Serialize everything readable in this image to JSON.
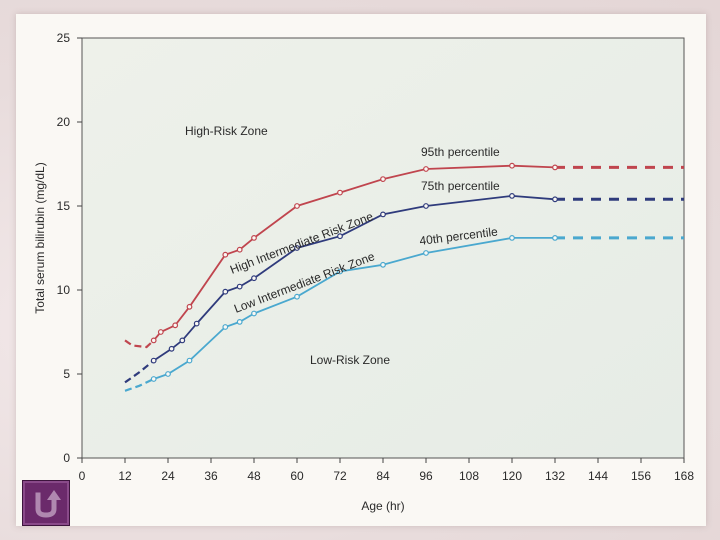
{
  "chart_data": {
    "type": "line",
    "xlabel": "Age (hr)",
    "ylabel": "Total serum bilirubin (mg/dL)",
    "xlim": [
      0,
      168
    ],
    "ylim": [
      0,
      25
    ],
    "x_ticks": [
      0,
      12,
      24,
      36,
      48,
      60,
      72,
      84,
      96,
      108,
      120,
      132,
      144,
      156,
      168
    ],
    "y_ticks": [
      0,
      5,
      10,
      15,
      20,
      25
    ],
    "grid": false,
    "series": [
      {
        "name": "95th percentile",
        "color": "#c0454e",
        "points": [
          [
            12,
            7.0
          ],
          [
            14,
            6.7
          ],
          [
            18,
            6.6
          ],
          [
            20,
            7.0
          ],
          [
            22,
            7.5
          ],
          [
            26,
            7.9
          ],
          [
            30,
            9.0
          ],
          [
            40,
            12.1
          ],
          [
            44,
            12.4
          ],
          [
            48,
            13.1
          ],
          [
            60,
            15.0
          ],
          [
            72,
            15.8
          ],
          [
            84,
            16.6
          ],
          [
            96,
            17.2
          ],
          [
            120,
            17.4
          ],
          [
            132,
            17.3
          ]
        ],
        "dashed_from_x": 132,
        "extension": [
          [
            132,
            17.3
          ],
          [
            168,
            17.3
          ]
        ]
      },
      {
        "name": "75th percentile",
        "color": "#2f3b7c",
        "points": [
          [
            12,
            4.5
          ],
          [
            16,
            5.1
          ],
          [
            20,
            5.8
          ],
          [
            25,
            6.5
          ],
          [
            28,
            7.0
          ],
          [
            32,
            8.0
          ],
          [
            40,
            9.9
          ],
          [
            44,
            10.2
          ],
          [
            48,
            10.7
          ],
          [
            60,
            12.5
          ],
          [
            72,
            13.2
          ],
          [
            84,
            14.5
          ],
          [
            96,
            15.0
          ],
          [
            120,
            15.6
          ],
          [
            132,
            15.4
          ]
        ],
        "dashed_from_x": 132,
        "extension": [
          [
            132,
            15.4
          ],
          [
            168,
            15.4
          ]
        ]
      },
      {
        "name": "40th percentile",
        "color": "#4aa8cf",
        "points": [
          [
            12,
            4.0
          ],
          [
            16,
            4.3
          ],
          [
            20,
            4.7
          ],
          [
            24,
            5.0
          ],
          [
            30,
            5.8
          ],
          [
            40,
            7.8
          ],
          [
            44,
            8.1
          ],
          [
            48,
            8.6
          ],
          [
            60,
            9.6
          ],
          [
            72,
            11.1
          ],
          [
            84,
            11.5
          ],
          [
            96,
            12.2
          ],
          [
            120,
            13.1
          ],
          [
            132,
            13.1
          ]
        ],
        "dashed_from_x": 132,
        "extension": [
          [
            132,
            13.1
          ],
          [
            168,
            13.1
          ]
        ]
      }
    ],
    "annotations": {
      "high_risk": "High-Risk Zone",
      "high_intermediate": "High Intermediate Risk Zone",
      "low_intermediate": "Low Intermediate Risk Zone",
      "low_risk": "Low-Risk Zone",
      "p95": "95th percentile",
      "p75": "75th percentile",
      "p40": "40th percentile"
    }
  },
  "back_button": {
    "icon": "return-arrow-icon",
    "color": "#6b2a6b"
  }
}
